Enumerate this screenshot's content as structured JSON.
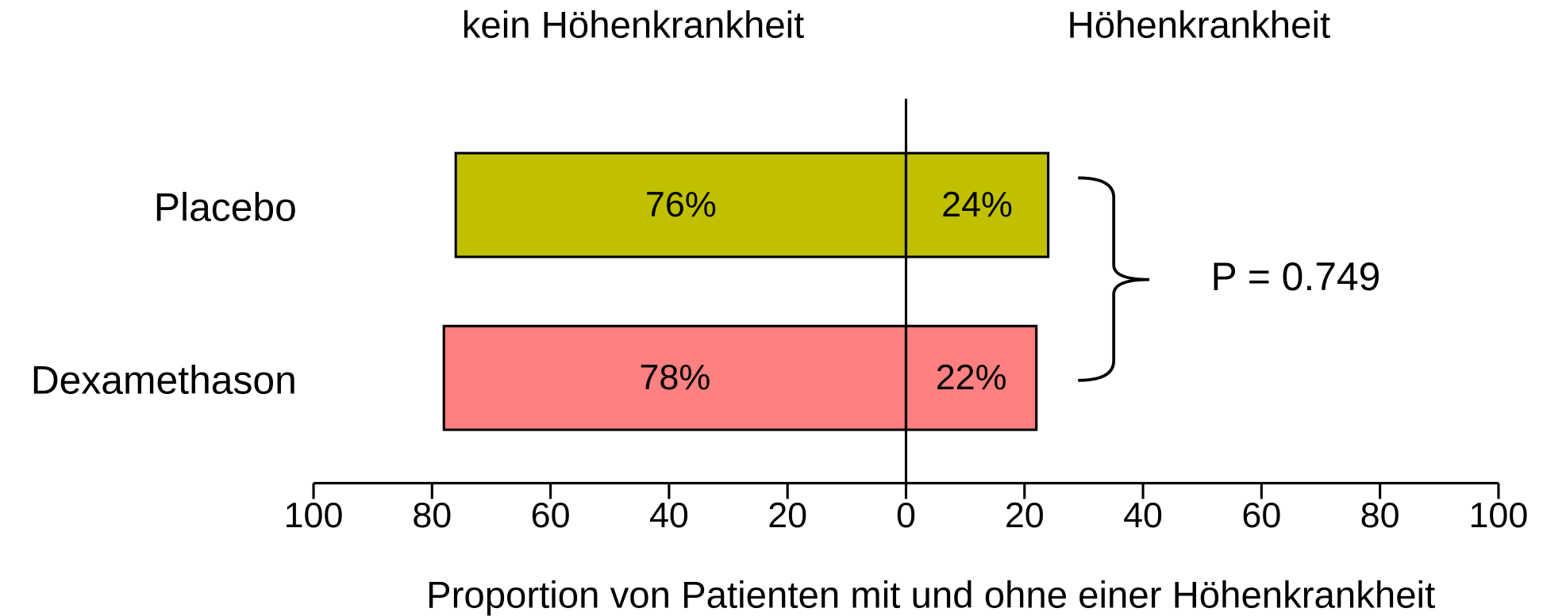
{
  "chart_data": {
    "type": "diverging_bar",
    "xlabel": "Proportion von Patienten mit und ohne einer Höhenkrankheit",
    "categories": [
      "Placebo",
      "Dexamethason"
    ],
    "colors": [
      "#c0c000",
      "#ff8080"
    ],
    "series": [
      {
        "name": "kein Höhenkrankheit",
        "values": [
          76,
          78
        ],
        "value_labels": [
          "76%",
          "78%"
        ]
      },
      {
        "name": "Höhenkrankheit",
        "values": [
          24,
          22
        ],
        "value_labels": [
          "24%",
          "22%"
        ]
      }
    ],
    "xlim": [
      -100,
      100
    ],
    "xticks": [
      {
        "value": -100,
        "label": "100"
      },
      {
        "value": -80,
        "label": "80"
      },
      {
        "value": -60,
        "label": "60"
      },
      {
        "value": -40,
        "label": "40"
      },
      {
        "value": -20,
        "label": "20"
      },
      0,
      20,
      40,
      60,
      80,
      100
    ],
    "annotation": "P = 0.749"
  }
}
